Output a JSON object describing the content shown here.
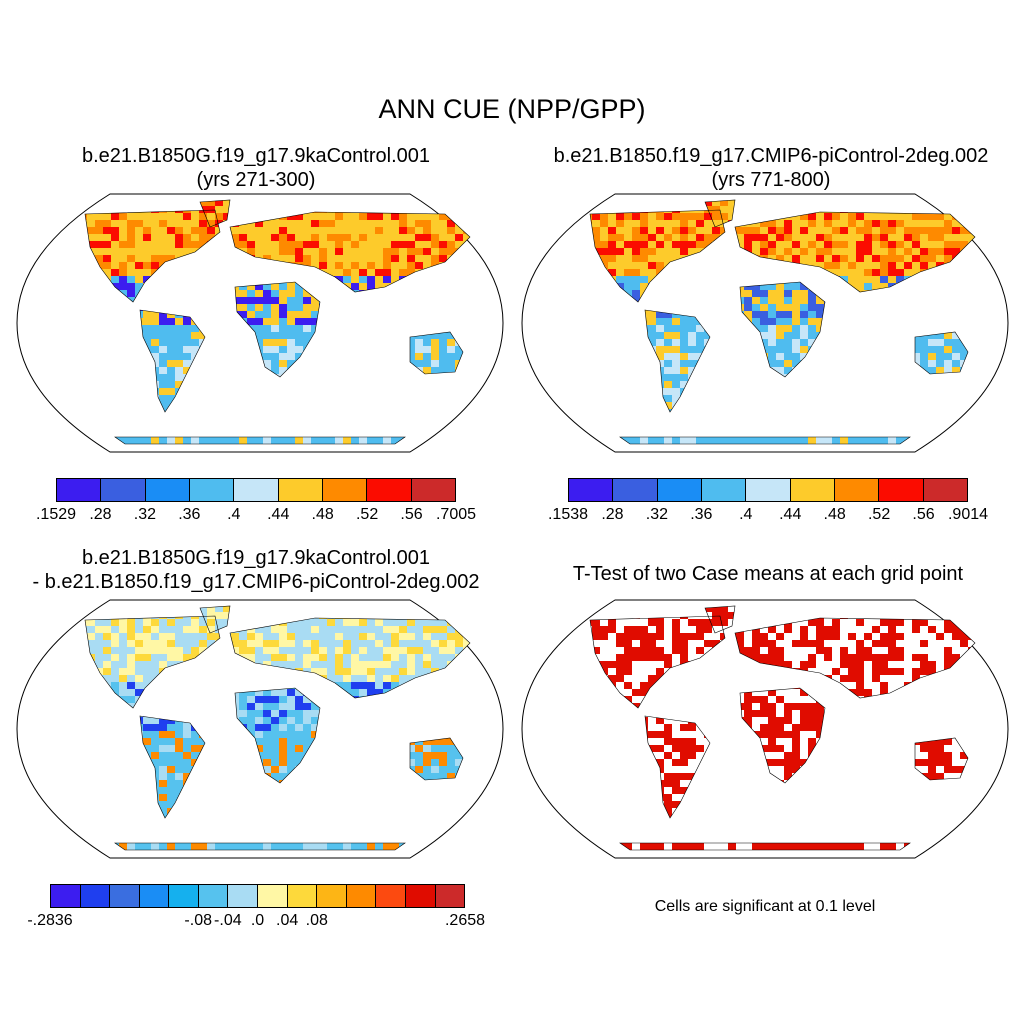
{
  "title": "ANN CUE (NPP/GPP)",
  "panels": [
    {
      "id": "case1",
      "title_lines": [
        "b.e21.B1850G.f19_g17.9kaControl.001",
        "(yrs 271-300)"
      ],
      "colorbar": {
        "colors": [
          "#3c1df0",
          "#3a5fe0",
          "#1a8df5",
          "#4fbcef",
          "#c6e6f8",
          "#fdcb2b",
          "#fe8a00",
          "#fb0c00",
          "#cc2a2a"
        ],
        "ticks": [
          ".1529",
          ".28",
          ".32",
          ".36",
          ".4",
          ".44",
          ".48",
          ".52",
          ".56",
          ".7005"
        ]
      }
    },
    {
      "id": "case2",
      "title_lines": [
        "b.e21.B1850.f19_g17.CMIP6-piControl-2deg.002",
        "(yrs 771-800)"
      ],
      "colorbar": {
        "colors": [
          "#3c1df0",
          "#3a5fe0",
          "#1a8df5",
          "#4fbcef",
          "#c6e6f8",
          "#fdcb2b",
          "#fe8a00",
          "#fb0c00",
          "#cc2a2a"
        ],
        "ticks": [
          ".1538",
          ".28",
          ".32",
          ".36",
          ".4",
          ".44",
          ".48",
          ".52",
          ".56",
          ".9014"
        ]
      }
    },
    {
      "id": "difference",
      "title_lines": [
        "b.e21.B1850G.f19_g17.9kaControl.001",
        "- b.e21.B1850.f19_g17.CMIP6-piControl-2deg.002"
      ],
      "colorbar": {
        "colors": [
          "#3c1df0",
          "#1f3fef",
          "#3a6ee0",
          "#1a8df5",
          "#15b0ee",
          "#56c2ee",
          "#a9dcf3",
          "#fff7a5",
          "#fdd93b",
          "#fdb515",
          "#fe8a00",
          "#fc4a10",
          "#e00c00",
          "#cc2a2a"
        ],
        "ticks": [
          "-.2836",
          "",
          "-.08",
          "-.04",
          ".0",
          ".04",
          ".08",
          "",
          ".2658"
        ]
      }
    },
    {
      "id": "ttest",
      "title_lines": [
        "T-Test of two Case means at each grid point"
      ],
      "note": "Cells are significant at 0.1 level"
    }
  ]
}
